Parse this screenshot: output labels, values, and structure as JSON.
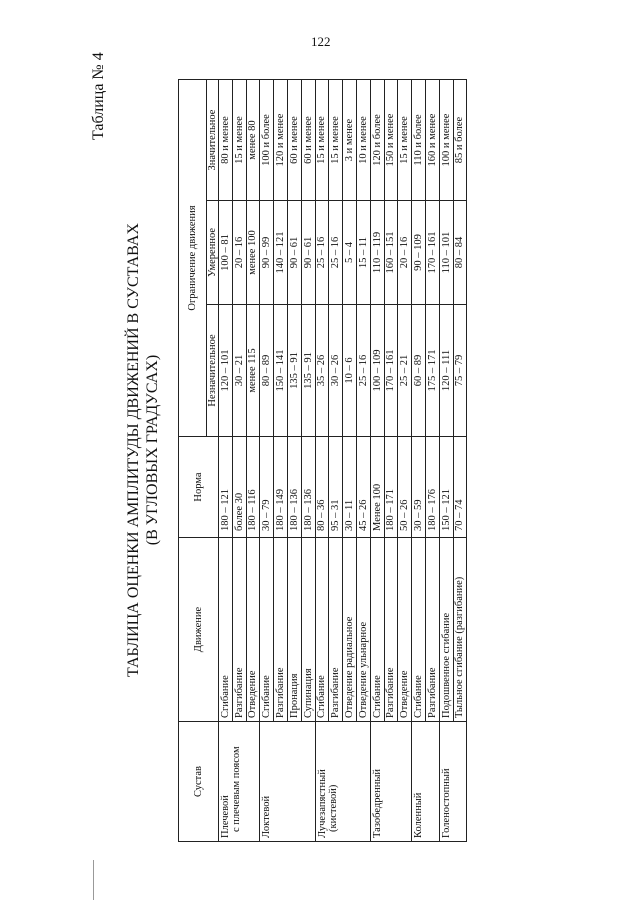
{
  "page_number": "122",
  "table_label": "Таблица № 4",
  "title": {
    "line1": "ТАБЛИЦА ОЦЕНКИ АМПЛИТУДЫ ДВИЖЕНИЙ В СУСТАВАХ",
    "line2": "(В УГЛОВЫХ ГРАДУСАХ)"
  },
  "headers": {
    "joint": "Сустав",
    "movement": "Движение",
    "norm": "Норма",
    "limitation": "Ограничение движения",
    "slight": "Незначительное",
    "moderate": "Умеренное",
    "significant": "Значительное"
  },
  "joints": [
    {
      "name": [
        "Плечевой",
        "с плечевым поясом"
      ],
      "rows": [
        {
          "movement": "Сгибание",
          "norm": "180 – 121",
          "slight": "120 – 101",
          "moderate": "100 – 81",
          "significant": "80 и менее"
        },
        {
          "movement": "Разгибание",
          "norm": "более 30",
          "slight": "30 – 21",
          "moderate": "20 – 16",
          "significant": "15 и менее"
        },
        {
          "movement": "Отведение",
          "norm": "180 – 116",
          "slight": "менее 115",
          "moderate": "менее 100",
          "significant": "менее 80"
        }
      ]
    },
    {
      "name": [
        "Локтевой"
      ],
      "rows": [
        {
          "movement": "Сгибание",
          "norm": "30 – 79",
          "slight": "80 – 89",
          "moderate": "90 – 99",
          "significant": "100 и более"
        },
        {
          "movement": "Разгибание",
          "norm": "180 – 149",
          "slight": "150 – 141",
          "moderate": "140 – 121",
          "significant": "120 и менее"
        },
        {
          "movement": "Пронация",
          "norm": "180 – 136",
          "slight": "135 – 91",
          "moderate": "90 – 61",
          "significant": "60 и менее"
        },
        {
          "movement": "Супинация",
          "norm": "180 – 136",
          "slight": "135 – 91",
          "moderate": "90 – 61",
          "significant": "60 и менее"
        }
      ]
    },
    {
      "name": [
        "Лучезапястный",
        "(кистевой)"
      ],
      "rows": [
        {
          "movement": "Сгибание",
          "norm": "80 – 36",
          "slight": "35 – 26",
          "moderate": "25 – 16",
          "significant": "15 и менее"
        },
        {
          "movement": "Разгибание",
          "norm": "95 – 31",
          "slight": "30 – 26",
          "moderate": "25 – 16",
          "significant": "15 и менее"
        },
        {
          "movement": "Отведение радиальное",
          "norm": "30 – 11",
          "slight": "10 – 6",
          "moderate": "5 – 4",
          "significant": "3 и менее"
        },
        {
          "movement": "Отведение ульнарное",
          "norm": "45 – 26",
          "slight": "25 – 16",
          "moderate": "15 – 11",
          "significant": "10 и менее"
        }
      ]
    },
    {
      "name": [
        "Тазобедренный"
      ],
      "rows": [
        {
          "movement": "Сгибание",
          "norm": "Менее 100",
          "slight": "100 – 109",
          "moderate": "110 – 119",
          "significant": "120 и более"
        },
        {
          "movement": "Разгибание",
          "norm": "180 – 171",
          "slight": "170 – 161",
          "moderate": "160 – 151",
          "significant": "150 и менее"
        },
        {
          "movement": "Отведение",
          "norm": "50 – 26",
          "slight": "25 – 21",
          "moderate": "20 – 16",
          "significant": "15 и менее"
        }
      ]
    },
    {
      "name": [
        "Коленный"
      ],
      "rows": [
        {
          "movement": "Сгибание",
          "norm": "30 – 59",
          "slight": "60 – 89",
          "moderate": "90 – 109",
          "significant": "110 и более"
        },
        {
          "movement": "Разгибание",
          "norm": "180 – 176",
          "slight": "175 – 171",
          "moderate": "170 – 161",
          "significant": "160 и менее"
        }
      ]
    },
    {
      "name": [
        "Голеностопный"
      ],
      "rows": [
        {
          "movement": "Подошвенное сгибание",
          "norm": "150 – 121",
          "slight": "120 – 111",
          "moderate": "110 – 101",
          "significant": "100 и менее"
        },
        {
          "movement": "Тыльное сгибание (разгибание)",
          "norm": "70 – 74",
          "slight": "75 – 79",
          "moderate": "80 – 84",
          "significant": "85 и более"
        }
      ]
    }
  ]
}
